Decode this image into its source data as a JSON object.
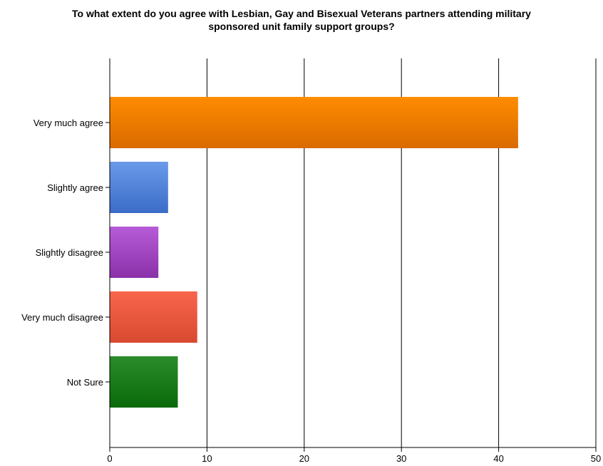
{
  "chart_data": {
    "type": "bar",
    "orientation": "horizontal",
    "title": "To what extent do you agree with Lesbian, Gay and Bisexual Veterans partners attending military\nsponsored unit family support groups?",
    "categories": [
      "Very much agree",
      "Slightly agree",
      "Slightly disagree",
      "Very much disagree",
      "Not Sure"
    ],
    "values": [
      42,
      6,
      5,
      9,
      7
    ],
    "colors": [
      [
        "#ff8c00",
        "#d96a00"
      ],
      [
        "#6a9ae8",
        "#3a6cc8"
      ],
      [
        "#b65cd8",
        "#8a30a8"
      ],
      [
        "#f8664c",
        "#d84a30"
      ],
      [
        "#2a8c2a",
        "#0a6a0a"
      ]
    ],
    "xlim": [
      0,
      50
    ],
    "xticks": [
      0,
      10,
      20,
      30,
      40,
      50
    ],
    "grid": true,
    "xlabel": "",
    "ylabel": ""
  }
}
